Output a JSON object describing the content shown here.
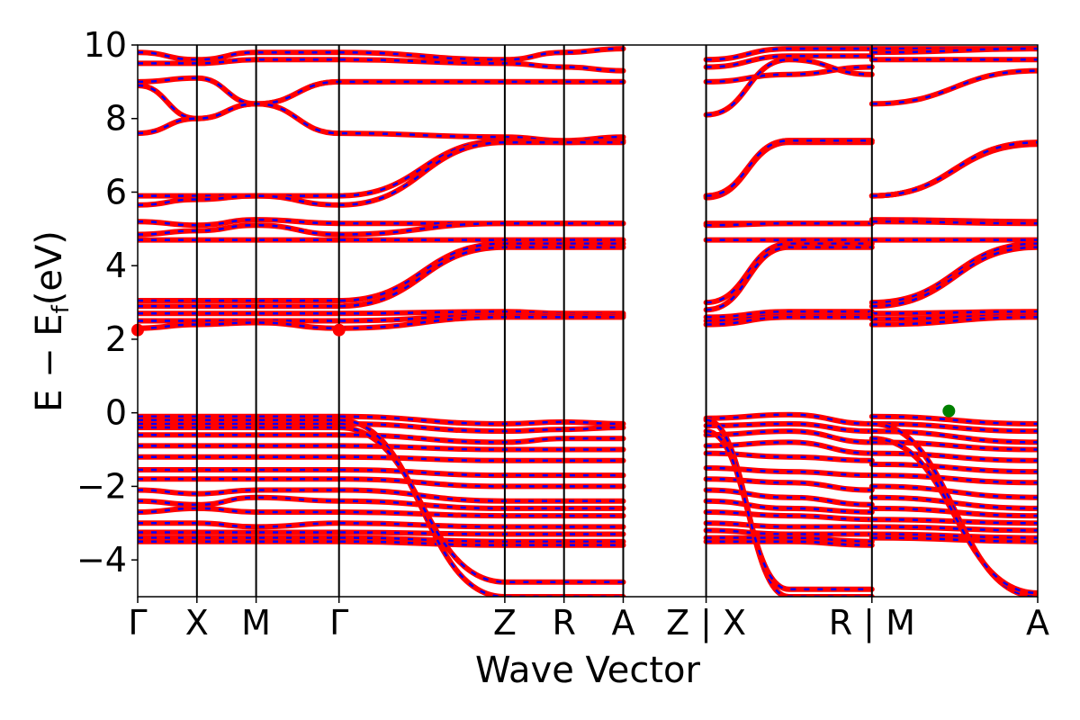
{
  "chart_data": {
    "type": "line",
    "xlabel": "Wave Vector",
    "ylabel_main": "E − E",
    "ylabel_sub": "f",
    "ylabel_unit": "(eV)",
    "ylim": [
      -5,
      10
    ],
    "yticks": [
      10,
      8,
      6,
      4,
      2,
      0,
      -2,
      -4
    ],
    "ytick_labels": [
      "10",
      "8",
      "6",
      "4",
      "2",
      "0",
      "−2",
      "−4"
    ],
    "kpath": [
      {
        "label": "Γ",
        "x": 0.0
      },
      {
        "label": "X",
        "x": 0.5
      },
      {
        "label": "M",
        "x": 1.0
      },
      {
        "label": "Γ",
        "x": 1.7
      },
      {
        "label": "Z",
        "x": 3.1
      },
      {
        "label": "R",
        "x": 3.6
      },
      {
        "label": "A",
        "x": 4.1
      },
      {
        "label": "Z | X",
        "x": 4.8
      },
      {
        "label": "R | M",
        "x": 6.2
      },
      {
        "label": "A",
        "x": 7.6
      }
    ],
    "xlim": [
      0.0,
      7.6
    ],
    "segment_breaks": [
      4.8,
      6.2
    ],
    "band_colors": {
      "spin_up": "#ff0000",
      "spin_down": "#0000ff"
    },
    "markers": [
      {
        "name": "CBM",
        "x": 0.0,
        "y": 2.25,
        "color": "#ff0000"
      },
      {
        "name": "CBM",
        "x": 1.7,
        "y": 2.25,
        "color": "#ff0000"
      },
      {
        "name": "VBM",
        "x": 6.85,
        "y": 0.05,
        "color": "#008000"
      }
    ],
    "bands": [
      {
        "segs": [
          [
            9.8,
            9.6,
            9.8,
            9.8,
            9.6,
            9.8,
            9.9
          ],
          [
            9.6,
            9.9,
            9.9
          ],
          [
            9.9,
            9.9
          ]
        ]
      },
      {
        "segs": [
          [
            9.5,
            9.5,
            9.6,
            9.6,
            9.5,
            9.4,
            9.3
          ],
          [
            9.4,
            9.7,
            9.7
          ],
          [
            9.8,
            9.9
          ]
        ]
      },
      {
        "segs": [
          [
            9.0,
            9.1,
            8.4,
            9.0,
            9.0,
            9.0,
            9.0
          ],
          [
            9.0,
            9.2,
            9.4
          ],
          [
            9.6,
            9.6
          ]
        ]
      },
      {
        "segs": [
          [
            8.9,
            8.0,
            8.4,
            9.0,
            9.0,
            9.0,
            9.0
          ],
          [
            8.1,
            9.6,
            9.2
          ],
          [
            8.4,
            9.3
          ]
        ]
      },
      {
        "segs": [
          [
            7.6,
            8.0,
            8.4,
            7.6,
            7.5,
            7.4,
            7.5
          ],
          [
            5.9,
            7.4,
            7.4
          ],
          [
            5.9,
            7.35
          ]
        ]
      },
      {
        "segs": [
          [
            5.9,
            5.9,
            5.9,
            5.9,
            7.4,
            7.35,
            7.4
          ],
          [
            5.85,
            7.35,
            7.35
          ],
          [
            5.9,
            7.3
          ]
        ]
      },
      {
        "segs": [
          [
            5.65,
            5.8,
            5.9,
            5.65,
            7.35,
            7.35,
            7.35
          ],
          [
            5.9,
            7.4,
            7.4
          ],
          [
            5.9,
            7.35
          ]
        ]
      },
      {
        "segs": [
          [
            5.2,
            5.1,
            5.25,
            5.15,
            5.15,
            5.15,
            5.15
          ],
          [
            5.15,
            5.15,
            5.15
          ],
          [
            5.25,
            5.2
          ]
        ]
      },
      {
        "segs": [
          [
            4.85,
            4.95,
            5.1,
            4.85,
            5.15,
            5.15,
            5.15
          ],
          [
            5.1,
            5.15,
            5.15
          ],
          [
            5.2,
            5.15
          ]
        ]
      },
      {
        "segs": [
          [
            4.7,
            4.7,
            4.7,
            4.7,
            4.7,
            4.7,
            4.7
          ],
          [
            4.7,
            4.7,
            4.7
          ],
          [
            4.7,
            4.7
          ]
        ]
      },
      {
        "segs": [
          [
            3.05,
            3.05,
            3.05,
            3.05,
            4.6,
            4.6,
            4.6
          ],
          [
            3.0,
            4.6,
            4.6
          ],
          [
            3.0,
            4.6
          ]
        ]
      },
      {
        "segs": [
          [
            2.9,
            2.9,
            2.9,
            2.9,
            4.5,
            4.5,
            4.5
          ],
          [
            2.8,
            4.5,
            4.5
          ],
          [
            2.9,
            4.5
          ]
        ]
      },
      {
        "segs": [
          [
            2.7,
            2.7,
            2.7,
            2.7,
            2.75,
            2.7,
            2.7
          ],
          [
            2.6,
            2.75,
            2.75
          ],
          [
            2.7,
            2.75
          ]
        ]
      },
      {
        "segs": [
          [
            2.5,
            2.5,
            2.5,
            2.5,
            2.65,
            2.65,
            2.65
          ],
          [
            2.5,
            2.65,
            2.65
          ],
          [
            2.55,
            2.65
          ]
        ]
      },
      {
        "segs": [
          [
            2.3,
            2.4,
            2.45,
            2.3,
            2.6,
            2.6,
            2.6
          ],
          [
            2.4,
            2.6,
            2.6
          ],
          [
            2.4,
            2.6
          ]
        ]
      },
      {
        "segs": [
          [
            -0.1,
            -0.1,
            -0.1,
            -0.1,
            -0.3,
            -0.25,
            -0.3
          ],
          [
            -0.15,
            -0.05,
            -0.3
          ],
          [
            -0.1,
            -0.3
          ]
        ]
      },
      {
        "segs": [
          [
            -0.3,
            -0.3,
            -0.3,
            -0.3,
            -0.5,
            -0.45,
            -0.4
          ],
          [
            -0.35,
            -0.3,
            -0.5
          ],
          [
            -0.3,
            -0.5
          ]
        ]
      },
      {
        "segs": [
          [
            -0.6,
            -0.6,
            -0.6,
            -0.6,
            -0.8,
            -0.7,
            -0.7
          ],
          [
            -0.6,
            -0.5,
            -0.8
          ],
          [
            -0.5,
            -0.8
          ]
        ]
      },
      {
        "segs": [
          [
            -0.9,
            -0.9,
            -0.9,
            -0.9,
            -1.0,
            -1.0,
            -1.0
          ],
          [
            -0.9,
            -0.8,
            -1.1
          ],
          [
            -0.8,
            -1.0
          ]
        ]
      },
      {
        "segs": [
          [
            -1.2,
            -1.2,
            -1.2,
            -1.2,
            -1.3,
            -1.3,
            -1.3
          ],
          [
            -1.1,
            -1.2,
            -1.3
          ],
          [
            -1.1,
            -1.3
          ]
        ]
      },
      {
        "segs": [
          [
            -1.55,
            -1.55,
            -1.55,
            -1.55,
            -1.7,
            -1.7,
            -1.7
          ],
          [
            -1.5,
            -1.6,
            -1.7
          ],
          [
            -1.4,
            -1.6
          ]
        ]
      },
      {
        "segs": [
          [
            -1.8,
            -1.8,
            -1.8,
            -1.8,
            -2.0,
            -2.0,
            -2.0
          ],
          [
            -1.8,
            -1.9,
            -2.1
          ],
          [
            -1.7,
            -1.9
          ]
        ]
      },
      {
        "segs": [
          [
            -2.1,
            -2.2,
            -2.1,
            -2.1,
            -2.4,
            -2.4,
            -2.4
          ],
          [
            -2.1,
            -2.3,
            -2.5
          ],
          [
            -2.0,
            -2.3
          ]
        ]
      },
      {
        "segs": [
          [
            -2.4,
            -2.5,
            -2.3,
            -2.4,
            -2.6,
            -2.6,
            -2.6
          ],
          [
            -2.4,
            -2.6,
            -2.7
          ],
          [
            -2.3,
            -2.6
          ]
        ]
      },
      {
        "segs": [
          [
            -2.7,
            -2.6,
            -2.7,
            -2.7,
            -2.8,
            -2.8,
            -2.8
          ],
          [
            -2.7,
            -2.8,
            -2.9
          ],
          [
            -2.6,
            -2.8
          ]
        ]
      },
      {
        "segs": [
          [
            -3.0,
            -3.0,
            -3.1,
            -3.0,
            -3.1,
            -3.1,
            -3.1
          ],
          [
            -3.0,
            -3.1,
            -3.1
          ],
          [
            -2.9,
            -3.0
          ]
        ]
      },
      {
        "segs": [
          [
            -3.25,
            -3.25,
            -3.25,
            -3.25,
            -3.3,
            -3.3,
            -3.3
          ],
          [
            -3.2,
            -3.3,
            -3.3
          ],
          [
            -3.1,
            -3.2
          ]
        ]
      },
      {
        "segs": [
          [
            -3.4,
            -3.4,
            -3.4,
            -3.4,
            -3.5,
            -3.5,
            -3.5
          ],
          [
            -3.4,
            -3.4,
            -3.5
          ],
          [
            -3.3,
            -3.4
          ]
        ]
      },
      {
        "segs": [
          [
            -3.5,
            -3.5,
            -3.5,
            -3.5,
            -3.6,
            -3.6,
            -3.6
          ],
          [
            -3.5,
            -3.5,
            -3.6
          ],
          [
            -3.4,
            -3.5
          ]
        ]
      },
      {
        "segs": [
          [
            -0.2,
            -0.2,
            -0.2,
            -0.2,
            -5.0,
            -5.0,
            -5.0
          ],
          [
            -0.2,
            -5.0,
            -5.0
          ],
          [
            -0.3,
            -5.0
          ]
        ]
      },
      {
        "segs": [
          [
            -0.4,
            -0.4,
            -0.4,
            -0.4,
            -4.6,
            -4.6,
            -4.6
          ],
          [
            -0.5,
            -4.8,
            -4.8
          ],
          [
            -0.7,
            -4.9
          ]
        ]
      }
    ]
  }
}
